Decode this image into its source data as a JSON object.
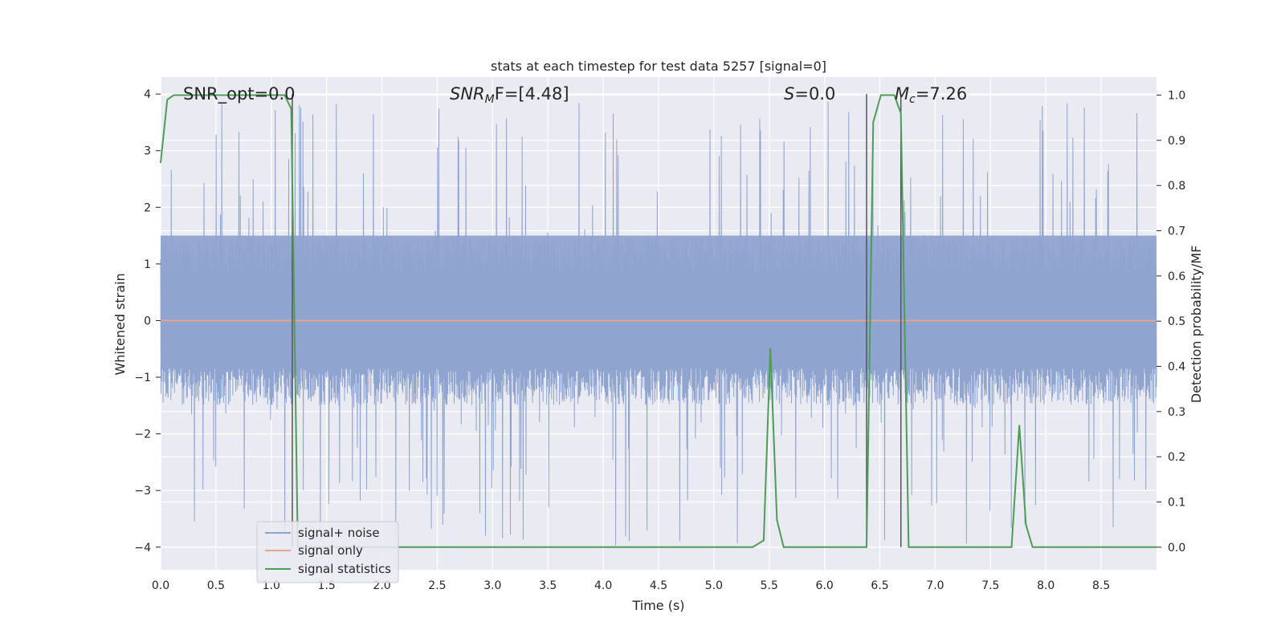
{
  "chart_data": {
    "type": "line",
    "title": "stats at each timestep for test data 5257 [signal=0]",
    "xlabel": "Time (s)",
    "ylabel_left": "Whitened strain",
    "ylabel_right": "Detection probability/MF",
    "xlim": [
      0.0,
      9.0
    ],
    "ylim_left": [
      -4.4,
      4.3
    ],
    "ylim_right": [
      -0.05,
      1.04
    ],
    "xticks": [
      "0.0",
      "0.5",
      "1.0",
      "1.5",
      "2.0",
      "2.5",
      "3.0",
      "3.5",
      "4.0",
      "4.5",
      "5.0",
      "5.5",
      "6.0",
      "6.5",
      "7.0",
      "7.5",
      "8.0",
      "8.5"
    ],
    "yticks_left": [
      "4",
      "3",
      "2",
      "1",
      "0",
      "−1",
      "−2",
      "−3",
      "−4"
    ],
    "yticks_right": [
      "1.0",
      "0.9",
      "0.8",
      "0.7",
      "0.6",
      "0.5",
      "0.4",
      "0.3",
      "0.2",
      "0.1",
      "0.0"
    ],
    "grid": true,
    "legend_position": "lower-left",
    "annotations": {
      "snr_opt": "SNR_opt=0.0",
      "snr_mf_label": "SNR",
      "snr_mf_sub": "M",
      "snr_mf_tail": "F=[4.48]",
      "s_label": "S",
      "s_tail": "=0.0",
      "mc_label": "M",
      "mc_sub": "c",
      "mc_tail": "=7.26"
    },
    "vertical_lines_x": [
      1.19,
      6.38,
      6.69
    ],
    "series": [
      {
        "name": "signal+ noise",
        "axis": "left",
        "color": "#8fa4cf",
        "noise_band": {
          "core_low": -0.85,
          "core_high": 1.5,
          "peak_high": 3.9,
          "peak_low": -4.0
        }
      },
      {
        "name": "signal only",
        "axis": "left",
        "color": "#e8a58a",
        "constant": 0.0
      },
      {
        "name": "signal statistics",
        "axis": "right",
        "color": "#4c9e57",
        "x": [
          0.0,
          0.06,
          0.12,
          0.5,
          1.0,
          1.12,
          1.18,
          1.24,
          1.3,
          5.35,
          5.45,
          5.51,
          5.57,
          5.63,
          6.38,
          6.44,
          6.51,
          6.57,
          6.63,
          6.69,
          6.76,
          6.82,
          7.69,
          7.76,
          7.82,
          7.88,
          9.0
        ],
        "values": [
          0.85,
          0.99,
          1.0,
          1.0,
          1.0,
          1.0,
          0.97,
          0.0,
          0.0,
          0.0,
          0.015,
          0.44,
          0.06,
          0.0,
          0.0,
          0.94,
          1.0,
          1.0,
          1.0,
          0.96,
          0.0,
          0.0,
          0.0,
          0.27,
          0.05,
          0.0,
          0.0
        ]
      }
    ]
  }
}
